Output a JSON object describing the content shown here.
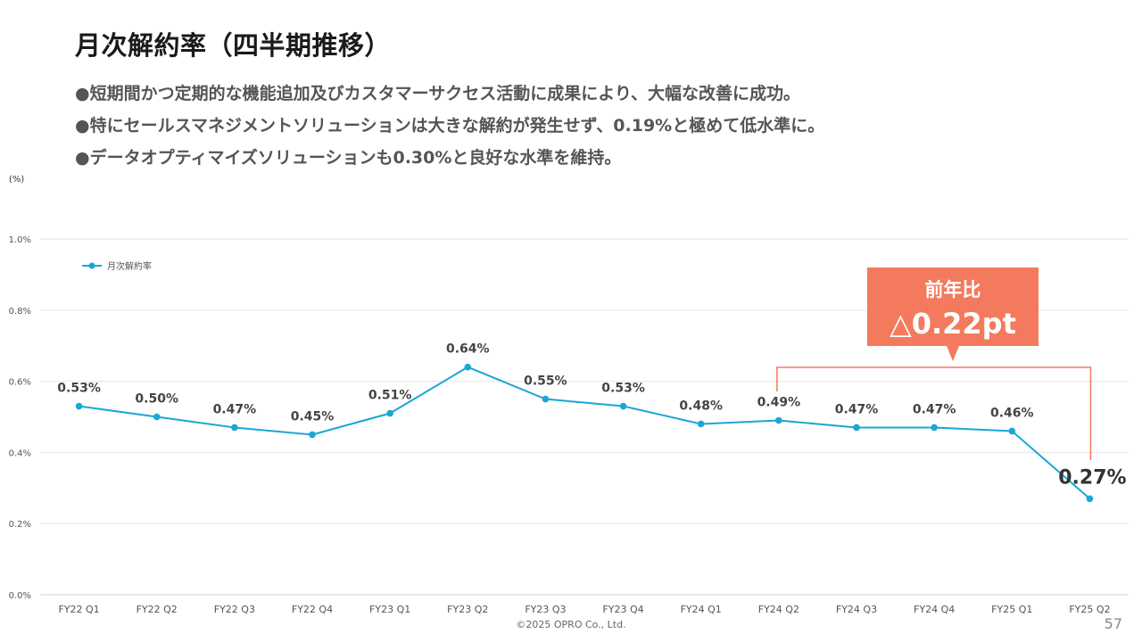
{
  "slide": {
    "title": "月次解約率（四半期推移）",
    "bullets": [
      "●短期間かつ定期的な機能追加及びカスタマーサクセス活動に成果により、大幅な改善に成功。",
      "●特にセールスマネジメントソリューションは大きな解約が発生せず、0.19%と極めて低水準に。",
      "●データオプティマイズソリューションも0.30%と良好な水準を維持。"
    ],
    "footer": "©2025 OPRO Co., Ltd.",
    "page_number": "57"
  },
  "chart_data": {
    "type": "line",
    "unit_label": "(%)",
    "categories": [
      "FY22 Q1",
      "FY22 Q2",
      "FY22 Q3",
      "FY22 Q4",
      "FY23 Q1",
      "FY23 Q2",
      "FY23 Q3",
      "FY23 Q4",
      "FY24 Q1",
      "FY24 Q2",
      "FY24 Q3",
      "FY24 Q4",
      "FY25 Q1",
      "FY25 Q2"
    ],
    "series": [
      {
        "name": "月次解約率",
        "values": [
          0.53,
          0.5,
          0.47,
          0.45,
          0.51,
          0.64,
          0.55,
          0.53,
          0.48,
          0.49,
          0.47,
          0.47,
          0.46,
          0.27
        ],
        "data_labels": [
          "0.53%",
          "0.50%",
          "0.47%",
          "0.45%",
          "0.51%",
          "0.64%",
          "0.55%",
          "0.53%",
          "0.48%",
          "0.49%",
          "0.47%",
          "0.47%",
          "0.46%",
          "0.27%"
        ],
        "color": "#1aa7d4"
      }
    ],
    "ylim": [
      0,
      1.0
    ],
    "yticks": [
      0,
      0.2,
      0.4,
      0.6,
      0.8,
      1.0
    ],
    "ytick_labels": [
      "0.0%",
      "0.2%",
      "0.4%",
      "0.6%",
      "0.8%",
      "1.0%"
    ],
    "grid": true,
    "legend_position": "top-left",
    "annotation": {
      "line1": "前年比",
      "line2": "△0.22pt",
      "from_category": "FY24 Q2",
      "to_category": "FY25 Q2",
      "color": "#f47a5e"
    }
  }
}
